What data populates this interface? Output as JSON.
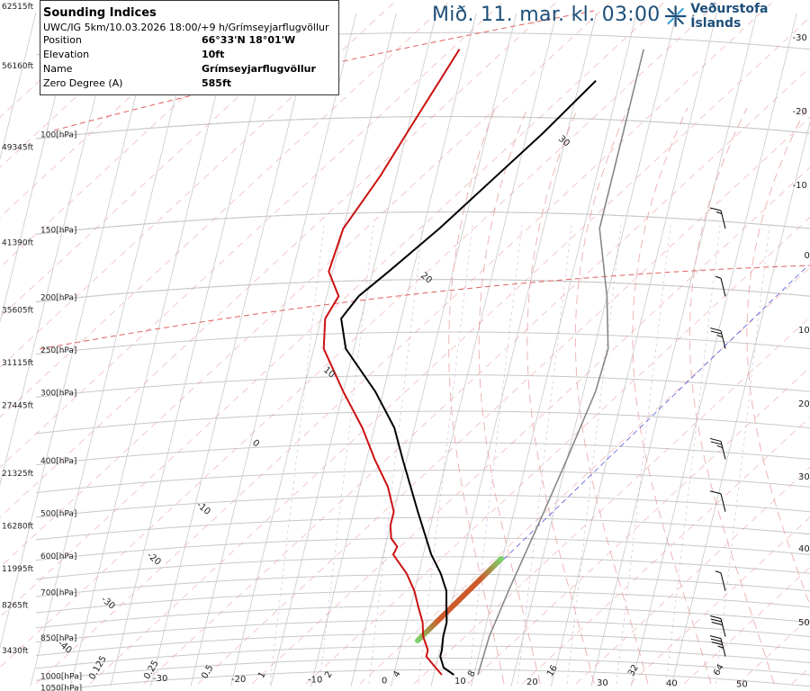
{
  "header": {
    "date_label": "Mið. 11. mar. kl. 03:00",
    "logo_text": "Veðurstofa Íslands"
  },
  "info": {
    "title": "Sounding Indices",
    "subtitle": "UWC/IG 5km/10.03.2026 18:00/+9 h/Grímseyjarflugvöllur",
    "rows": [
      {
        "label": "Position",
        "value": "66°33'N 18°01'W"
      },
      {
        "label": "Elevation",
        "value": "10ft"
      },
      {
        "label": "Name",
        "value": "Grímseyjarflugvöllur"
      },
      {
        "label": "Zero Degree (A)",
        "value": "585ft"
      }
    ]
  },
  "colors": {
    "temperature": "#cc1111",
    "dewpoint": "#000000",
    "parcel": "#888888",
    "isobar": "#c8c8c8",
    "isotherm": "#c8c8c8",
    "dry_adiabat": "#e8a0a0",
    "zero_isotherm": "#e06060",
    "moist_adiabat": "#e8a0a0",
    "mixing_ratio": "#c4a0d8"
  },
  "chart_data": {
    "type": "skew-t",
    "title": "",
    "pressure_levels": [
      {
        "p": 100,
        "label": "100[hPa]",
        "alt": "49345ft"
      },
      {
        "p": 150,
        "label": "150[hPa]",
        "alt": "41390ft"
      },
      {
        "p": 200,
        "label": "200[hPa]",
        "alt": "35605ft"
      },
      {
        "p": 250,
        "label": "250[hPa]",
        "alt": "31115ft"
      },
      {
        "p": 300,
        "label": "300[hPa]",
        "alt": "27445ft"
      },
      {
        "p": 400,
        "label": "400[hPa]",
        "alt": "21325ft"
      },
      {
        "p": 500,
        "label": "500[hPa]",
        "alt": "16280ft"
      },
      {
        "p": 600,
        "label": "600[hPa]",
        "alt": "11995ft"
      },
      {
        "p": 700,
        "label": "700[hPa]",
        "alt": "8265ft"
      },
      {
        "p": 850,
        "label": "850[hPa]",
        "alt": "3430ft"
      },
      {
        "p": 1000,
        "label": "1000[hPa]",
        "alt": ""
      },
      {
        "p": 1050,
        "label": "1050[hPa]",
        "alt": ""
      }
    ],
    "extra_altitude_labels": [
      "62515ft",
      "56160ft"
    ],
    "x_ticks": [
      "-30",
      "-20",
      "-10",
      "0",
      "10",
      "20",
      "30",
      "40",
      "50"
    ],
    "mixing_ratio_labels": [
      "0.125",
      "0.25",
      "0.5",
      "1",
      "2",
      "4",
      "8",
      "16",
      "32",
      "64"
    ],
    "right_labels": [
      "-30",
      "-20",
      "-10",
      "0",
      "10",
      "20",
      "30",
      "40",
      "50"
    ],
    "diagonal_labels": [
      "30",
      "20",
      "10",
      "0",
      "-10",
      "-20",
      "-30",
      "-40"
    ],
    "temperature": [
      {
        "p": 1000,
        "t": 2.0
      },
      {
        "p": 970,
        "t": 0.0
      },
      {
        "p": 925,
        "t": -3.0
      },
      {
        "p": 900,
        "t": -3.0
      },
      {
        "p": 850,
        "t": -5.0
      },
      {
        "p": 800,
        "t": -6.0
      },
      {
        "p": 750,
        "t": -8.0
      },
      {
        "p": 700,
        "t": -10.0
      },
      {
        "p": 650,
        "t": -13.0
      },
      {
        "p": 600,
        "t": -17.5
      },
      {
        "p": 580,
        "t": -17.0
      },
      {
        "p": 560,
        "t": -19.0
      },
      {
        "p": 530,
        "t": -20.0
      },
      {
        "p": 500,
        "t": -20.0
      },
      {
        "p": 450,
        "t": -23.0
      },
      {
        "p": 400,
        "t": -28.0
      },
      {
        "p": 350,
        "t": -33.0
      },
      {
        "p": 300,
        "t": -40.0
      },
      {
        "p": 250,
        "t": -47.5
      },
      {
        "p": 220,
        "t": -49.0
      },
      {
        "p": 200,
        "t": -47.0
      },
      {
        "p": 180,
        "t": -51.0
      },
      {
        "p": 150,
        "t": -50.0
      },
      {
        "p": 120,
        "t": -44.0
      },
      {
        "p": 100,
        "t": -40.0
      },
      {
        "p": 80,
        "t": -35.0
      },
      {
        "p": 70,
        "t": -32.0
      }
    ],
    "dewpoint": [
      {
        "p": 1000,
        "t": 5.0
      },
      {
        "p": 970,
        "t": 2.0
      },
      {
        "p": 925,
        "t": 0.5
      },
      {
        "p": 900,
        "t": 0.5
      },
      {
        "p": 850,
        "t": 0.0
      },
      {
        "p": 800,
        "t": 0.0
      },
      {
        "p": 750,
        "t": -1.0
      },
      {
        "p": 700,
        "t": -2.0
      },
      {
        "p": 650,
        "t": -4.5
      },
      {
        "p": 600,
        "t": -8.0
      },
      {
        "p": 500,
        "t": -14.0
      },
      {
        "p": 400,
        "t": -21.0
      },
      {
        "p": 350,
        "t": -25.0
      },
      {
        "p": 300,
        "t": -32.0
      },
      {
        "p": 250,
        "t": -42.0
      },
      {
        "p": 220,
        "t": -45.0
      },
      {
        "p": 200,
        "t": -42.0
      },
      {
        "p": 180,
        "t": -36.0
      },
      {
        "p": 150,
        "t": -26.0
      },
      {
        "p": 120,
        "t": -15.0
      },
      {
        "p": 100,
        "t": -6.0
      },
      {
        "p": 80,
        "t": 4.0
      }
    ],
    "parcel": [
      {
        "p": 1000,
        "t": 11.0
      },
      {
        "p": 850,
        "t": 11.5
      },
      {
        "p": 700,
        "t": 13.5
      },
      {
        "p": 500,
        "t": 17.5
      },
      {
        "p": 400,
        "t": 20.0
      },
      {
        "p": 300,
        "t": 23.0
      },
      {
        "p": 250,
        "t": 23.5
      },
      {
        "p": 200,
        "t": 20.0
      },
      {
        "p": 150,
        "t": 14.0
      },
      {
        "p": 100,
        "t": 14.0
      },
      {
        "p": 70,
        "t": 14.0
      }
    ],
    "wind_barbs": [
      {
        "p": 150,
        "speed": 15
      },
      {
        "p": 200,
        "speed": 5
      },
      {
        "p": 250,
        "speed": 25
      },
      {
        "p": 400,
        "speed": 25
      },
      {
        "p": 500,
        "speed": 10
      },
      {
        "p": 700,
        "speed": 5
      },
      {
        "p": 850,
        "speed": 30
      },
      {
        "p": 925,
        "speed": 35
      }
    ]
  }
}
